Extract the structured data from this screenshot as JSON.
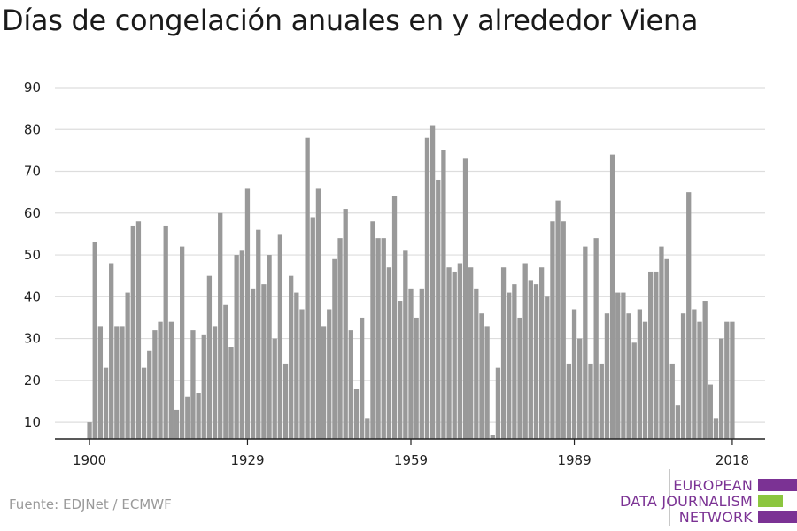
{
  "source": "Fuente: EDJNet / ECMWF",
  "logo": {
    "lines": [
      "EUROPEAN",
      "DATA JOURNALISM",
      "NETWORK"
    ],
    "colors": {
      "purple": "#7b3294",
      "green": "#8cc63f"
    }
  },
  "chart_data": {
    "type": "bar",
    "title": "Días de congelación anuales en y alrededor Viena",
    "xlabel": "",
    "ylabel": "",
    "bar_color": "#999999",
    "grid": true,
    "ylim": [
      6,
      90
    ],
    "yticks": [
      10,
      20,
      30,
      40,
      50,
      60,
      70,
      80,
      90
    ],
    "xticks": [
      1900,
      1929,
      1959,
      1989,
      2018
    ],
    "x": [
      1900,
      1901,
      1902,
      1903,
      1904,
      1905,
      1906,
      1907,
      1908,
      1909,
      1910,
      1911,
      1912,
      1913,
      1914,
      1915,
      1916,
      1917,
      1918,
      1919,
      1920,
      1921,
      1922,
      1923,
      1924,
      1925,
      1926,
      1927,
      1928,
      1929,
      1930,
      1931,
      1932,
      1933,
      1934,
      1935,
      1936,
      1937,
      1938,
      1939,
      1940,
      1941,
      1942,
      1943,
      1944,
      1945,
      1946,
      1947,
      1948,
      1949,
      1950,
      1951,
      1952,
      1953,
      1954,
      1955,
      1956,
      1957,
      1958,
      1959,
      1960,
      1961,
      1962,
      1963,
      1964,
      1965,
      1966,
      1967,
      1968,
      1969,
      1970,
      1971,
      1972,
      1973,
      1974,
      1975,
      1976,
      1977,
      1978,
      1979,
      1980,
      1981,
      1982,
      1983,
      1984,
      1985,
      1986,
      1987,
      1988,
      1989,
      1990,
      1991,
      1992,
      1993,
      1994,
      1995,
      1996,
      1997,
      1998,
      1999,
      2000,
      2001,
      2002,
      2003,
      2004,
      2005,
      2006,
      2007,
      2008,
      2009,
      2010,
      2011,
      2012,
      2013,
      2014,
      2015,
      2016,
      2017,
      2018
    ],
    "values": [
      10,
      53,
      33,
      23,
      48,
      33,
      33,
      41,
      57,
      58,
      23,
      27,
      32,
      34,
      57,
      34,
      13,
      52,
      16,
      32,
      17,
      31,
      45,
      33,
      60,
      38,
      28,
      50,
      51,
      66,
      42,
      56,
      43,
      50,
      30,
      55,
      24,
      45,
      41,
      37,
      78,
      59,
      66,
      33,
      37,
      49,
      54,
      61,
      32,
      18,
      35,
      11,
      58,
      54,
      54,
      47,
      64,
      39,
      51,
      42,
      35,
      42,
      78,
      81,
      68,
      75,
      47,
      46,
      48,
      73,
      47,
      42,
      36,
      33,
      7,
      23,
      47,
      41,
      43,
      35,
      48,
      44,
      43,
      47,
      40,
      58,
      63,
      58,
      24,
      37,
      30,
      52,
      24,
      54,
      24,
      36,
      74,
      41,
      41,
      36,
      29,
      37,
      34,
      46,
      46,
      52,
      49,
      24,
      14,
      36,
      65,
      37,
      34,
      39,
      19,
      11,
      30,
      34,
      34
    ]
  }
}
